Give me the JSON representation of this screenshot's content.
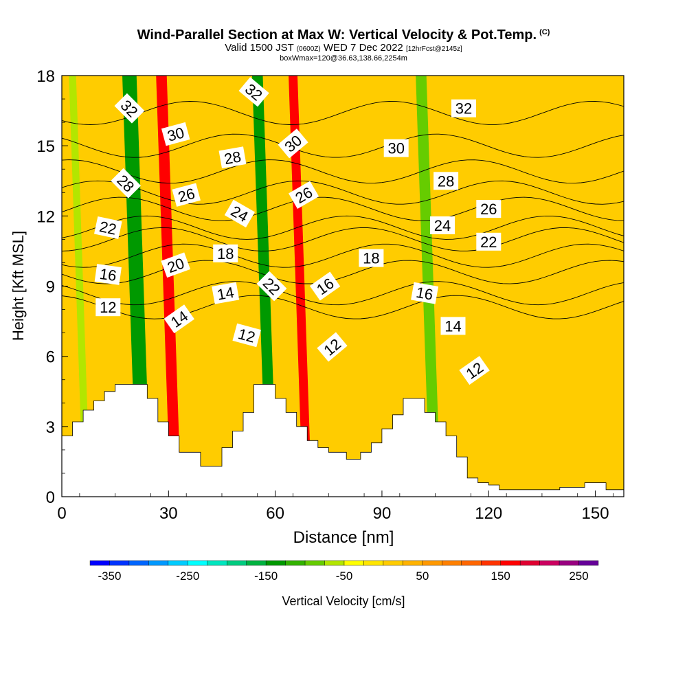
{
  "header": {
    "title": "Wind-Parallel Section at Max W: Vertical Velocity & Pot.Temp.",
    "copyright": "(C)",
    "valid_prefix": "Valid 1500 JST",
    "valid_utc": "(0600Z)",
    "valid_date": "WED 7 Dec 2022",
    "forecast": "[12hrFcst@2145z]",
    "box": "boxWmax=120@36.63,138.66,2254m"
  },
  "chart_data": {
    "type": "heatmap",
    "xlabel": "Distance [nm]",
    "ylabel": "Height [Kft MSL]",
    "xlim": [
      0,
      158
    ],
    "ylim": [
      0,
      18
    ],
    "xticks": [
      0,
      30,
      60,
      90,
      120,
      150
    ],
    "yticks": [
      0,
      3,
      6,
      9,
      12,
      15,
      18
    ],
    "colorbar": {
      "label": "Vertical Velocity [cm/s]",
      "ticks": [
        -350,
        -250,
        -150,
        -50,
        50,
        150,
        250
      ],
      "range": [
        -375,
        275
      ],
      "step": 25,
      "colors": [
        "#0000ff",
        "#0033ff",
        "#0066ff",
        "#0099ff",
        "#00ccff",
        "#00ffff",
        "#00e6bf",
        "#00cc80",
        "#00b340",
        "#009900",
        "#33b300",
        "#66cc00",
        "#b3e600",
        "#ffff00",
        "#ffe600",
        "#ffcc00",
        "#ffb300",
        "#ff9900",
        "#ff8000",
        "#ff6600",
        "#ff3300",
        "#ff0000",
        "#e00030",
        "#cc0060",
        "#990080",
        "#660099"
      ]
    },
    "velocity_bands": [
      {
        "x": 3,
        "w": 2,
        "value": -60
      },
      {
        "x": 19,
        "w": 4,
        "value": -130
      },
      {
        "x": 28,
        "w": 3,
        "value": 160
      },
      {
        "x": 55,
        "w": 3,
        "value": -130
      },
      {
        "x": 65,
        "w": 2.5,
        "value": 150
      },
      {
        "x": 101,
        "w": 3,
        "value": -80
      }
    ],
    "terrain": [
      [
        0,
        2.6
      ],
      [
        3,
        3.2
      ],
      [
        6,
        3.7
      ],
      [
        9,
        4.1
      ],
      [
        12,
        4.5
      ],
      [
        15,
        4.8
      ],
      [
        24,
        4.2
      ],
      [
        27,
        3.2
      ],
      [
        30,
        2.6
      ],
      [
        33,
        1.9
      ],
      [
        39,
        1.3
      ],
      [
        45,
        2.1
      ],
      [
        48,
        2.8
      ],
      [
        51,
        3.6
      ],
      [
        54,
        4.8
      ],
      [
        60,
        4.2
      ],
      [
        63,
        3.6
      ],
      [
        66,
        3.0
      ],
      [
        69,
        2.4
      ],
      [
        72,
        2.1
      ],
      [
        75,
        1.9
      ],
      [
        80,
        1.6
      ],
      [
        84,
        1.9
      ],
      [
        87,
        2.3
      ],
      [
        90,
        2.9
      ],
      [
        93,
        3.5
      ],
      [
        96,
        4.2
      ],
      [
        102,
        3.6
      ],
      [
        105,
        3.2
      ],
      [
        108,
        2.6
      ],
      [
        111,
        1.7
      ],
      [
        114,
        0.8
      ],
      [
        117,
        0.6
      ],
      [
        120,
        0.5
      ],
      [
        123,
        0.3
      ],
      [
        140,
        0.4
      ],
      [
        147,
        0.6
      ],
      [
        153,
        0.3
      ],
      [
        158,
        0.3
      ]
    ],
    "isentropes": [
      {
        "label": "12",
        "y": 8.1
      },
      {
        "label": "14",
        "y": 8.7
      },
      {
        "label": "16",
        "y": 9.6
      },
      {
        "label": "18",
        "y": 10.3
      },
      {
        "label": "20",
        "y": 11.0
      },
      {
        "label": "22",
        "y": 11.5
      },
      {
        "label": "24",
        "y": 12.3
      },
      {
        "label": "26",
        "y": 13.0
      },
      {
        "label": "28",
        "y": 13.9
      },
      {
        "label": "30",
        "y": 15.0
      },
      {
        "label": "32",
        "y": 16.4
      }
    ],
    "contour_labels": [
      {
        "text": "32",
        "x": 19,
        "y": 16.6,
        "rot": 45
      },
      {
        "text": "30",
        "x": 32,
        "y": 15.5,
        "rot": -15
      },
      {
        "text": "28",
        "x": 18,
        "y": 13.4,
        "rot": 45
      },
      {
        "text": "26",
        "x": 35,
        "y": 12.9,
        "rot": -15
      },
      {
        "text": "22",
        "x": 13,
        "y": 11.5,
        "rot": 12
      },
      {
        "text": "20",
        "x": 32,
        "y": 9.9,
        "rot": -20
      },
      {
        "text": "16",
        "x": 13,
        "y": 9.5,
        "rot": 8
      },
      {
        "text": "12",
        "x": 13,
        "y": 8.1,
        "rot": 0
      },
      {
        "text": "14",
        "x": 33,
        "y": 7.6,
        "rot": -35
      },
      {
        "text": "32",
        "x": 54,
        "y": 17.3,
        "rot": 40
      },
      {
        "text": "28",
        "x": 48,
        "y": 14.5,
        "rot": -10
      },
      {
        "text": "24",
        "x": 50,
        "y": 12.1,
        "rot": 30
      },
      {
        "text": "18",
        "x": 46,
        "y": 10.4,
        "rot": 0
      },
      {
        "text": "14",
        "x": 46,
        "y": 8.7,
        "rot": -10
      },
      {
        "text": "22",
        "x": 59,
        "y": 9.0,
        "rot": 45
      },
      {
        "text": "12",
        "x": 52,
        "y": 6.9,
        "rot": 15
      },
      {
        "text": "30",
        "x": 65,
        "y": 15.1,
        "rot": -40
      },
      {
        "text": "26",
        "x": 68,
        "y": 12.9,
        "rot": -30
      },
      {
        "text": "16",
        "x": 74,
        "y": 9.0,
        "rot": -35
      },
      {
        "text": "12",
        "x": 76,
        "y": 6.4,
        "rot": -40
      },
      {
        "text": "32",
        "x": 113,
        "y": 16.6,
        "rot": 0
      },
      {
        "text": "30",
        "x": 94,
        "y": 14.9,
        "rot": 0
      },
      {
        "text": "28",
        "x": 108,
        "y": 13.5,
        "rot": 0
      },
      {
        "text": "26",
        "x": 120,
        "y": 12.3,
        "rot": 0
      },
      {
        "text": "24",
        "x": 107,
        "y": 11.6,
        "rot": 0
      },
      {
        "text": "22",
        "x": 120,
        "y": 10.9,
        "rot": 0
      },
      {
        "text": "18",
        "x": 87,
        "y": 10.2,
        "rot": 0
      },
      {
        "text": "16",
        "x": 102,
        "y": 8.7,
        "rot": 10
      },
      {
        "text": "14",
        "x": 110,
        "y": 7.3,
        "rot": 0
      },
      {
        "text": "12",
        "x": 116,
        "y": 5.4,
        "rot": -35
      }
    ]
  }
}
